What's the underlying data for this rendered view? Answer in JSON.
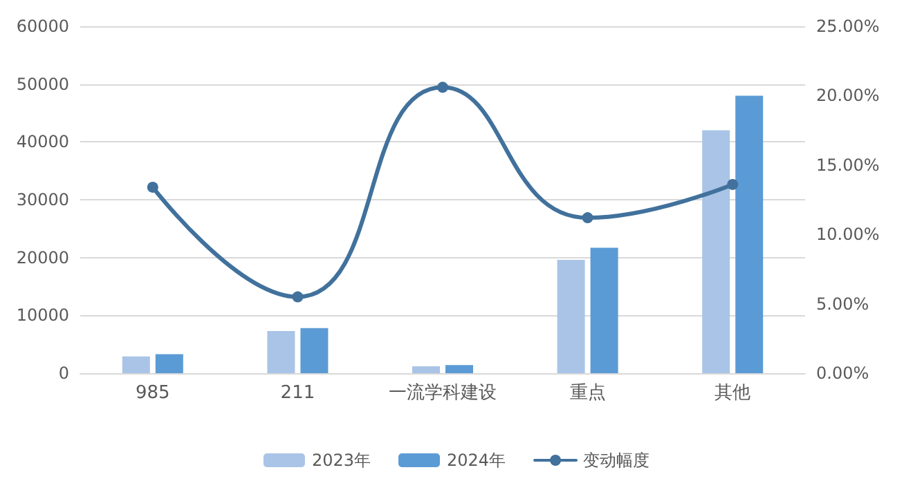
{
  "chart_data": {
    "type": "bar",
    "categories": [
      "985",
      "211",
      "一流学科建设",
      "重点",
      "其他"
    ],
    "series": [
      {
        "name": "2023年",
        "color": "#a9c4e6",
        "values": [
          2900,
          7300,
          1200,
          19600,
          42000
        ]
      },
      {
        "name": "2024年",
        "color": "#5b9bd5",
        "values": [
          3300,
          7800,
          1400,
          21700,
          48000
        ]
      },
      {
        "name": "变动幅度",
        "type": "line",
        "axis": "y2",
        "color": "#41719c",
        "values": [
          13.4,
          5.5,
          20.6,
          11.2,
          13.6
        ]
      }
    ],
    "ylim": [
      0,
      60000
    ],
    "yticks": [
      0,
      10000,
      20000,
      30000,
      40000,
      50000,
      60000
    ],
    "y2lim": [
      0,
      25
    ],
    "y2ticks": [
      {
        "value": 0,
        "label": "0.00%"
      },
      {
        "value": 5,
        "label": "5.00%"
      },
      {
        "value": 10,
        "label": "10.00%"
      },
      {
        "value": 15,
        "label": "15.00%"
      },
      {
        "value": 20,
        "label": "20.00%"
      },
      {
        "value": 25,
        "label": "25.00%"
      }
    ],
    "grid": "y",
    "legend": "bottom",
    "marker": "circle",
    "line_style": "solid"
  }
}
